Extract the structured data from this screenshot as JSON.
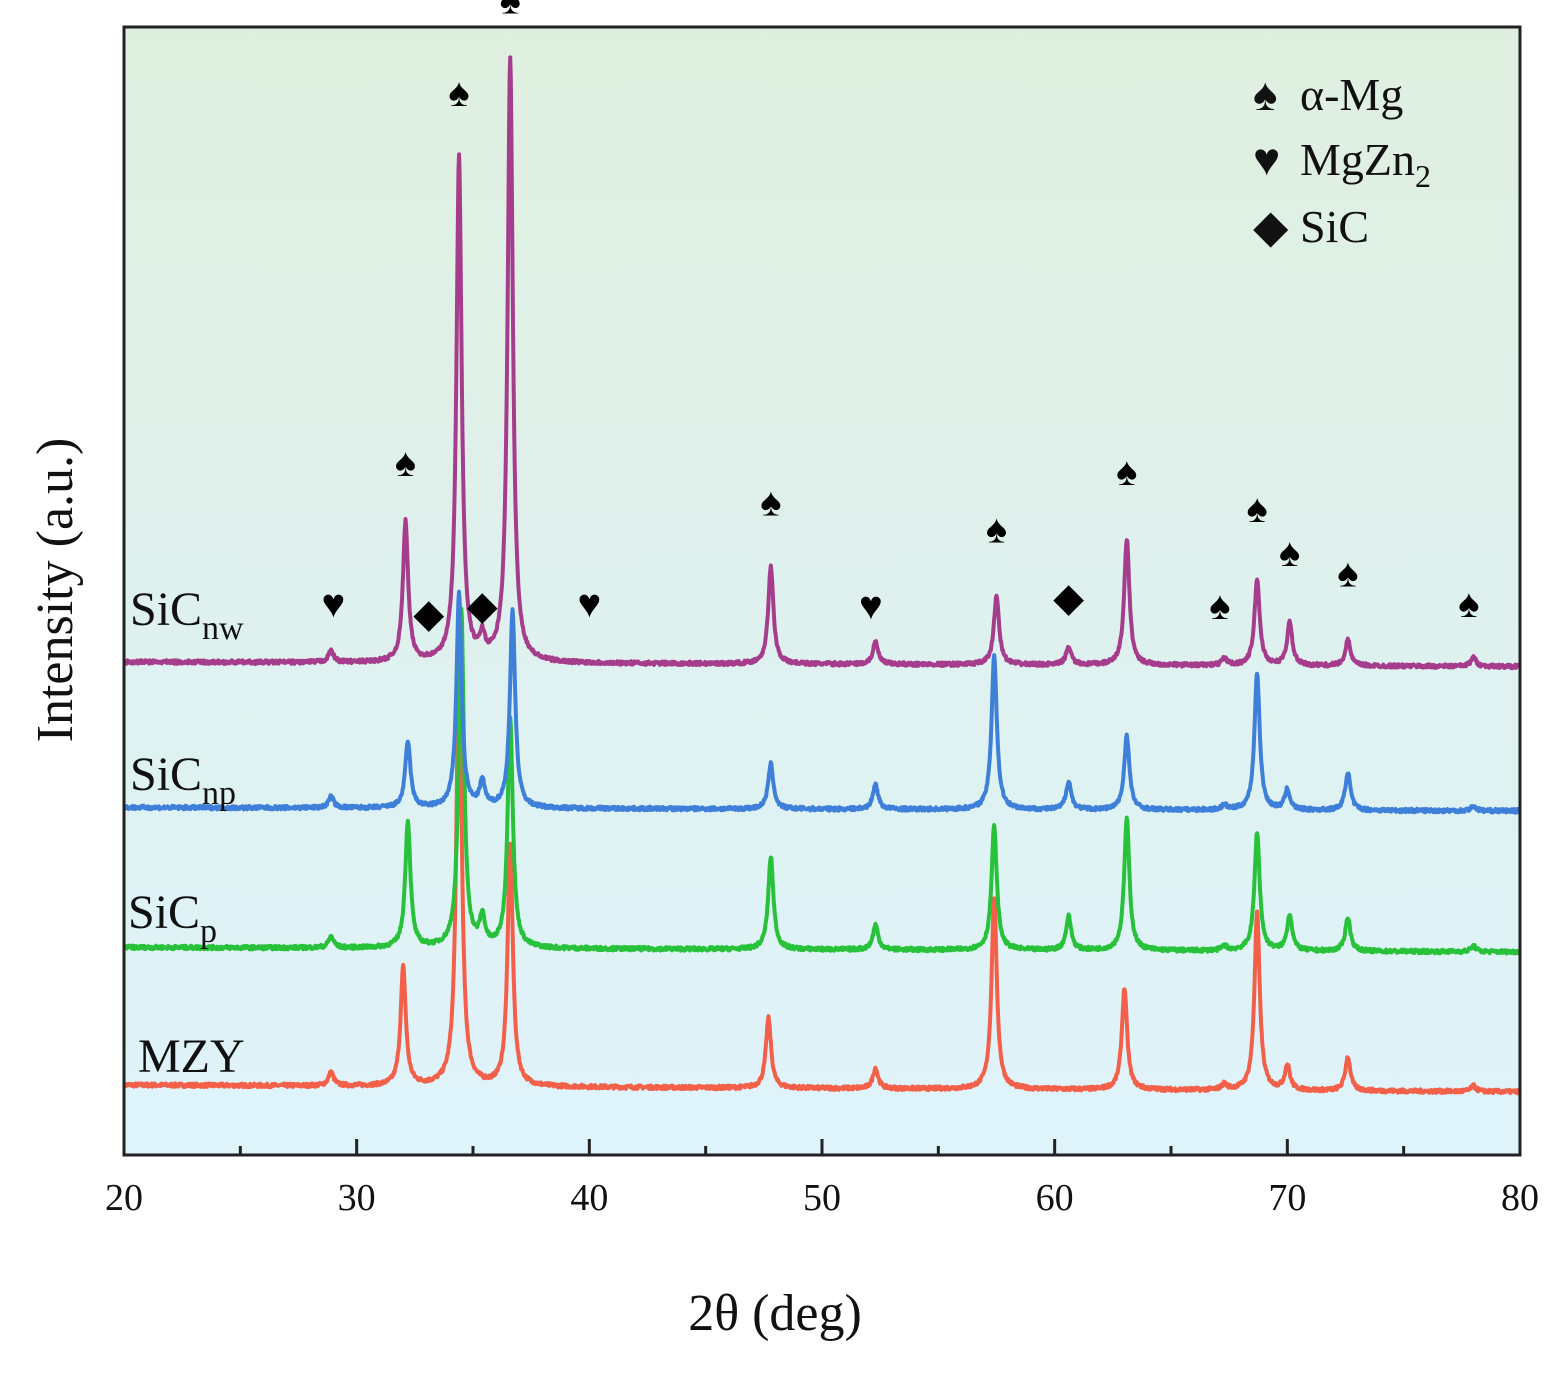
{
  "chart_data": {
    "type": "line",
    "xlabel": "2θ (deg)",
    "ylabel": "Intensity (a.u.)",
    "xlim": [
      20,
      80
    ],
    "x_ticks": [
      20,
      30,
      40,
      50,
      60,
      70,
      80
    ],
    "grid": false,
    "legend": {
      "placement": "top-right",
      "entries": [
        {
          "symbol": "♠",
          "name": "spade-icon",
          "label": "α-Mg",
          "sub": ""
        },
        {
          "symbol": "♥",
          "name": "heart-icon",
          "label": "MgZn",
          "sub": "2"
        },
        {
          "symbol": "◆",
          "name": "diamond-icon",
          "label": "SiC",
          "sub": ""
        }
      ]
    },
    "series": [
      {
        "name": "MZY",
        "label_main": "MZY",
        "label_sub": "",
        "color": "#f2604a",
        "offset": 0.0,
        "slope": -0.006,
        "peaks": [
          [
            28.9,
            0.012
          ],
          [
            32.0,
            0.105
          ],
          [
            34.4,
            0.395
          ],
          [
            36.6,
            0.215
          ],
          [
            47.7,
            0.062
          ],
          [
            52.3,
            0.018
          ],
          [
            57.4,
            0.17
          ],
          [
            63.0,
            0.09
          ],
          [
            67.3,
            0.005
          ],
          [
            68.7,
            0.158
          ],
          [
            70.0,
            0.022
          ],
          [
            72.6,
            0.03
          ],
          [
            78.0,
            0.005
          ]
        ]
      },
      {
        "name": "SiCp",
        "label_main": "SiC",
        "label_sub": "p",
        "color": "#28c23a",
        "offset": 0.122,
        "slope": -0.004,
        "peaks": [
          [
            28.9,
            0.01
          ],
          [
            32.2,
            0.112
          ],
          [
            34.5,
            0.3
          ],
          [
            35.4,
            0.025
          ],
          [
            36.6,
            0.205
          ],
          [
            47.8,
            0.082
          ],
          [
            52.3,
            0.022
          ],
          [
            57.4,
            0.11
          ],
          [
            60.6,
            0.03
          ],
          [
            63.1,
            0.117
          ],
          [
            67.3,
            0.004
          ],
          [
            68.7,
            0.105
          ],
          [
            70.1,
            0.032
          ],
          [
            72.6,
            0.03
          ],
          [
            78.0,
            0.005
          ]
        ]
      },
      {
        "name": "SiCnp",
        "label_main": "SiC",
        "label_sub": "np",
        "color": "#3e7fd9",
        "offset": 0.246,
        "slope": -0.003,
        "peaks": [
          [
            28.9,
            0.01
          ],
          [
            32.2,
            0.059
          ],
          [
            34.4,
            0.19
          ],
          [
            35.4,
            0.022
          ],
          [
            36.7,
            0.175
          ],
          [
            47.8,
            0.04
          ],
          [
            52.3,
            0.022
          ],
          [
            57.4,
            0.137
          ],
          [
            60.6,
            0.025
          ],
          [
            63.1,
            0.066
          ],
          [
            67.3,
            0.004
          ],
          [
            68.7,
            0.122
          ],
          [
            70.0,
            0.018
          ],
          [
            72.6,
            0.034
          ],
          [
            78.0,
            0.004
          ]
        ]
      },
      {
        "name": "SiCnw",
        "label_main": "SiC",
        "label_sub": "nw",
        "color": "#a63d8c",
        "offset": 0.375,
        "slope": -0.004,
        "peaks": [
          [
            28.9,
            0.01
          ],
          [
            32.1,
            0.124
          ],
          [
            34.4,
            0.447
          ],
          [
            35.4,
            0.018
          ],
          [
            36.6,
            0.535
          ],
          [
            47.8,
            0.086
          ],
          [
            52.3,
            0.02
          ],
          [
            57.5,
            0.061
          ],
          [
            60.6,
            0.016
          ],
          [
            63.1,
            0.112
          ],
          [
            67.3,
            0.006
          ],
          [
            68.7,
            0.076
          ],
          [
            70.1,
            0.038
          ],
          [
            72.6,
            0.023
          ],
          [
            78.0,
            0.008
          ]
        ]
      }
    ],
    "annotations": [
      {
        "symbol": "♥",
        "name": "heart-icon",
        "x": 29.0,
        "y": 0.415
      },
      {
        "symbol": "♠",
        "name": "spade-icon",
        "x": 32.1,
        "y": 0.54
      },
      {
        "symbol": "◆",
        "name": "diamond-icon",
        "x": 33.1,
        "y": 0.406
      },
      {
        "symbol": "♠",
        "name": "spade-icon",
        "x": 34.4,
        "y": 0.868
      },
      {
        "symbol": "◆",
        "name": "diamond-icon",
        "x": 35.4,
        "y": 0.413
      },
      {
        "symbol": "♠",
        "name": "spade-icon",
        "x": 36.6,
        "y": 0.95
      },
      {
        "symbol": "♥",
        "name": "heart-icon",
        "x": 40.0,
        "y": 0.415
      },
      {
        "symbol": "♠",
        "name": "spade-icon",
        "x": 47.8,
        "y": 0.505
      },
      {
        "symbol": "♥",
        "name": "heart-icon",
        "x": 52.1,
        "y": 0.413
      },
      {
        "symbol": "♠",
        "name": "spade-icon",
        "x": 57.5,
        "y": 0.481
      },
      {
        "symbol": "◆",
        "name": "diamond-icon",
        "x": 60.6,
        "y": 0.42
      },
      {
        "symbol": "♠",
        "name": "spade-icon",
        "x": 63.1,
        "y": 0.532
      },
      {
        "symbol": "♠",
        "name": "spade-icon",
        "x": 67.1,
        "y": 0.413
      },
      {
        "symbol": "♠",
        "name": "spade-icon",
        "x": 68.7,
        "y": 0.499
      },
      {
        "symbol": "♠",
        "name": "spade-icon",
        "x": 70.1,
        "y": 0.46
      },
      {
        "symbol": "♠",
        "name": "spade-icon",
        "x": 72.6,
        "y": 0.442
      },
      {
        "symbol": "♠",
        "name": "spade-icon",
        "x": 77.8,
        "y": 0.415
      }
    ],
    "colors": {
      "background_top": "#dfefdf",
      "background_mid": "#dff1ef",
      "background_bottom": "#dff3fb"
    }
  }
}
